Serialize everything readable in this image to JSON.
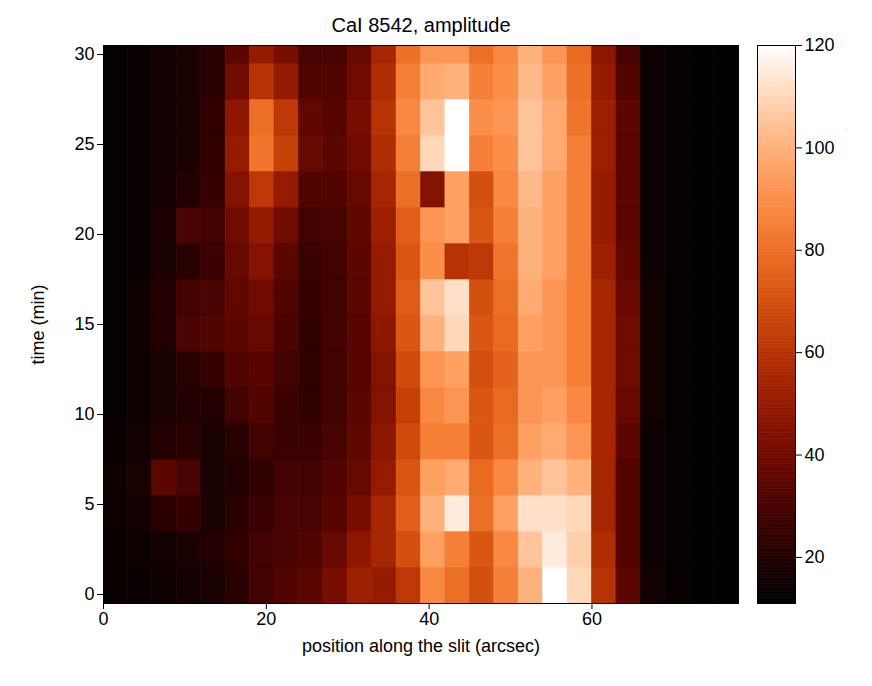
{
  "chart_data": {
    "type": "heatmap",
    "title": "CaI 8542, amplitude",
    "x_label": "position along the slit (arcsec)",
    "y_label": "time (min)",
    "xlim": [
      0,
      78
    ],
    "ylim": [
      -0.5,
      30.5
    ],
    "xticks": [
      0,
      20,
      40,
      60
    ],
    "yticks": [
      0,
      5,
      10,
      15,
      20,
      25,
      30
    ],
    "x_edges": [
      0,
      3,
      6,
      9,
      12,
      15,
      18,
      21,
      24,
      27,
      30,
      33,
      36,
      39,
      42,
      45,
      48,
      51,
      54,
      57,
      60,
      63,
      66,
      69,
      72,
      75,
      78
    ],
    "y_edges": [
      -0.5,
      1.5,
      3.5,
      5.5,
      7.5,
      9.5,
      11.5,
      13.5,
      15.5,
      17.5,
      19.5,
      21.5,
      23.5,
      25.5,
      27.5,
      29.5,
      30.5
    ],
    "values": [
      [
        14,
        14,
        15,
        16,
        18,
        22,
        28,
        32,
        35,
        42,
        52,
        50,
        62,
        88,
        80,
        70,
        85,
        100,
        125,
        110,
        60,
        35,
        16,
        13,
        12,
        12
      ],
      [
        14,
        15,
        16,
        18,
        20,
        24,
        28,
        30,
        32,
        38,
        48,
        55,
        70,
        95,
        85,
        72,
        88,
        105,
        115,
        108,
        58,
        32,
        15,
        13,
        12,
        12
      ],
      [
        15,
        16,
        22,
        25,
        18,
        22,
        26,
        30,
        30,
        34,
        42,
        55,
        75,
        100,
        115,
        80,
        95,
        112,
        112,
        110,
        55,
        32,
        15,
        13,
        12,
        12
      ],
      [
        15,
        18,
        35,
        30,
        18,
        20,
        24,
        28,
        28,
        32,
        38,
        50,
        72,
        95,
        98,
        78,
        88,
        100,
        105,
        100,
        55,
        32,
        15,
        13,
        12,
        12
      ],
      [
        14,
        16,
        20,
        22,
        18,
        22,
        28,
        26,
        26,
        30,
        36,
        48,
        68,
        85,
        85,
        72,
        80,
        95,
        98,
        92,
        55,
        35,
        15,
        13,
        12,
        12
      ],
      [
        13,
        15,
        18,
        20,
        20,
        28,
        32,
        26,
        24,
        28,
        35,
        45,
        65,
        88,
        92,
        72,
        78,
        92,
        95,
        88,
        55,
        38,
        16,
        13,
        12,
        12
      ],
      [
        13,
        15,
        18,
        22,
        25,
        32,
        34,
        28,
        24,
        28,
        34,
        45,
        68,
        92,
        95,
        70,
        76,
        92,
        92,
        85,
        55,
        40,
        16,
        13,
        12,
        12
      ],
      [
        13,
        15,
        20,
        30,
        32,
        35,
        38,
        30,
        24,
        28,
        34,
        48,
        72,
        100,
        110,
        72,
        78,
        95,
        92,
        85,
        55,
        40,
        16,
        13,
        12,
        12
      ],
      [
        13,
        15,
        20,
        28,
        30,
        36,
        40,
        32,
        25,
        28,
        35,
        50,
        74,
        105,
        112,
        70,
        80,
        98,
        92,
        85,
        55,
        38,
        16,
        13,
        12,
        12
      ],
      [
        13,
        14,
        18,
        22,
        26,
        38,
        45,
        35,
        26,
        28,
        35,
        50,
        72,
        90,
        60,
        62,
        82,
        100,
        95,
        85,
        52,
        36,
        15,
        13,
        12,
        12
      ],
      [
        13,
        14,
        18,
        30,
        28,
        40,
        50,
        40,
        28,
        30,
        36,
        52,
        75,
        92,
        95,
        72,
        85,
        100,
        95,
        85,
        50,
        35,
        15,
        13,
        12,
        12
      ],
      [
        13,
        14,
        16,
        20,
        25,
        45,
        62,
        50,
        32,
        32,
        38,
        55,
        80,
        45,
        95,
        70,
        88,
        102,
        95,
        85,
        50,
        35,
        15,
        13,
        12,
        12
      ],
      [
        13,
        14,
        16,
        18,
        24,
        50,
        82,
        65,
        38,
        35,
        40,
        58,
        85,
        110,
        130,
        85,
        90,
        105,
        98,
        85,
        52,
        35,
        15,
        13,
        12,
        12
      ],
      [
        13,
        14,
        16,
        18,
        24,
        48,
        80,
        62,
        36,
        34,
        42,
        60,
        88,
        105,
        120,
        90,
        92,
        105,
        98,
        82,
        52,
        35,
        15,
        13,
        12,
        12
      ],
      [
        13,
        14,
        16,
        18,
        22,
        40,
        60,
        50,
        32,
        32,
        40,
        58,
        85,
        98,
        100,
        85,
        90,
        102,
        95,
        80,
        50,
        32,
        15,
        13,
        12,
        12
      ],
      [
        13,
        14,
        16,
        18,
        22,
        35,
        50,
        42,
        30,
        30,
        38,
        55,
        80,
        92,
        92,
        80,
        88,
        100,
        92,
        78,
        48,
        30,
        15,
        13,
        12,
        12
      ]
    ],
    "colorbar_lim": [
      11,
      120
    ],
    "colorbar_ticks": [
      20,
      40,
      60,
      80,
      100,
      120
    ]
  }
}
